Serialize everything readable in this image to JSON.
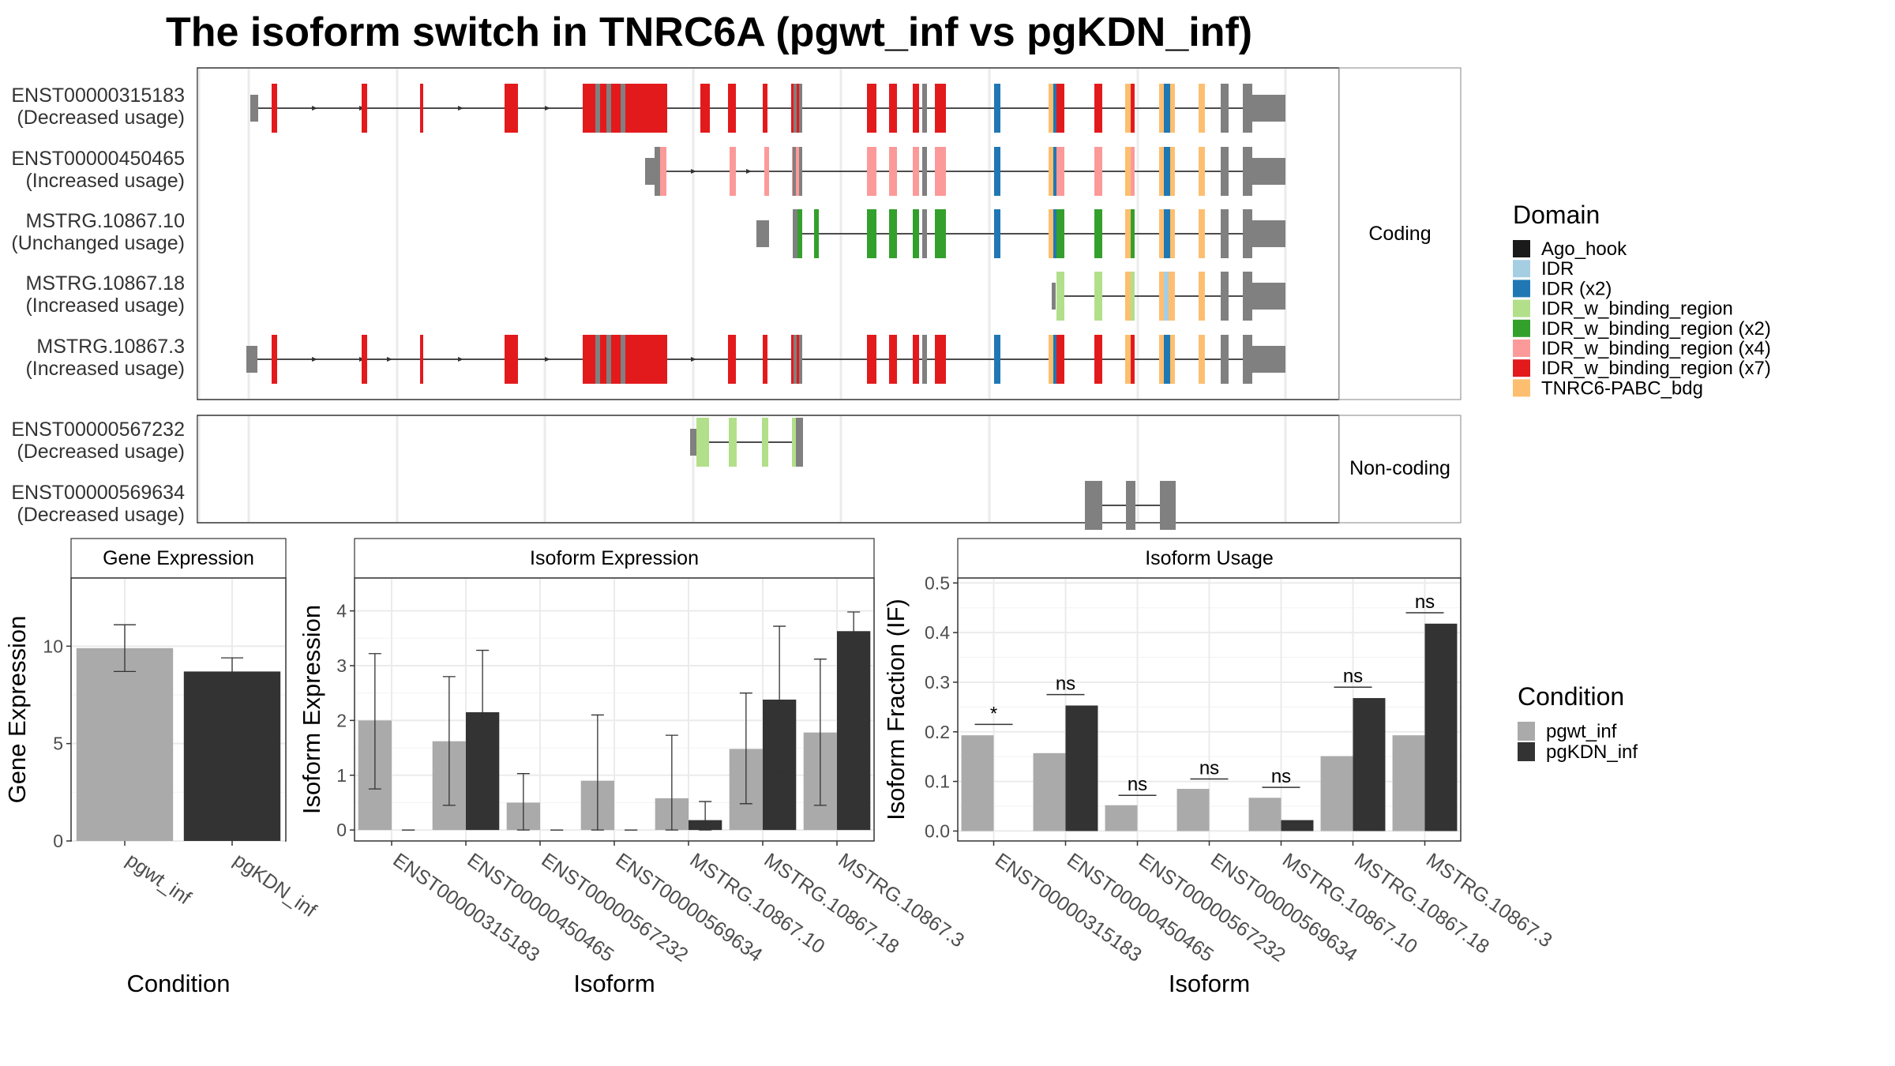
{
  "title": "The isoform switch in TNRC6A (pgwt_inf vs pgKDN_inf)",
  "colors": {
    "exon_plain": "#808080",
    "Ago_hook": "#1a1a1a",
    "IDR": "#a6cee3",
    "IDR (x2)": "#1f78b4",
    "IDR_w_binding_region": "#b2df8a",
    "IDR_w_binding_region (x2)": "#33a02c",
    "IDR_w_binding_region (x4)": "#fb9a99",
    "IDR_w_binding_region (x7)": "#e31a1c",
    "TNRC6-PABC_bdg": "#fdbf6f",
    "pgwt_inf": "#aaaaaa",
    "pgKDN_inf": "#333333"
  },
  "domain_legend": {
    "title": "Domain",
    "items": [
      "Ago_hook",
      "IDR",
      "IDR (x2)",
      "IDR_w_binding_region",
      "IDR_w_binding_region (x2)",
      "IDR_w_binding_region (x4)",
      "IDR_w_binding_region (x7)",
      "TNRC6-PABC_bdg"
    ]
  },
  "condition_legend": {
    "title": "Condition",
    "items": [
      "pgwt_inf",
      "pgKDN_inf"
    ]
  },
  "structure_panels": [
    {
      "strip": "Coding",
      "tracks": [
        {
          "id": "ENST00000315183",
          "usage": "(Decreased usage)"
        },
        {
          "id": "ENST00000450465",
          "usage": "(Increased usage)"
        },
        {
          "id": "MSTRG.10867.10",
          "usage": "(Unchanged usage)"
        },
        {
          "id": "MSTRG.10867.18",
          "usage": "(Increased usage)"
        },
        {
          "id": "MSTRG.10867.3",
          "usage": "(Increased usage)"
        }
      ]
    },
    {
      "strip": "Non-coding",
      "tracks": [
        {
          "id": "ENST00000567232",
          "usage": "(Decreased usage)"
        },
        {
          "id": "ENST00000569634",
          "usage": "(Decreased usage)"
        }
      ]
    }
  ],
  "chart_data": [
    {
      "type": "bar",
      "title": "Gene Expression",
      "xlabel": "Condition",
      "ylabel": "Gene Expression",
      "ylim": [
        0,
        13.5
      ],
      "yticks": [
        0,
        5,
        10
      ],
      "categories": [
        "pgwt_inf",
        "pgKDN_inf"
      ],
      "values": [
        9.9,
        8.7
      ],
      "error_low": [
        8.7,
        8.0
      ],
      "error_high": [
        11.1,
        9.4
      ]
    },
    {
      "type": "bar",
      "title": "Isoform Expression",
      "xlabel": "Isoform",
      "ylabel": "Isoform Expression",
      "ylim": [
        -0.2,
        4.6
      ],
      "yticks": [
        0,
        1,
        2,
        3,
        4
      ],
      "categories": [
        "ENST00000315183",
        "ENST00000450465",
        "ENST00000567232",
        "ENST00000569634",
        "MSTRG.10867.10",
        "MSTRG.10867.18",
        "MSTRG.10867.3"
      ],
      "series": [
        {
          "name": "pgwt_inf",
          "values": [
            2.0,
            1.62,
            0.5,
            0.9,
            0.58,
            1.48,
            1.78
          ],
          "error_low": [
            0.75,
            0.45,
            0.0,
            0.0,
            0.0,
            0.48,
            0.45
          ],
          "error_high": [
            3.22,
            2.8,
            1.03,
            2.1,
            1.73,
            2.5,
            3.12
          ]
        },
        {
          "name": "pgKDN_inf",
          "values": [
            0.0,
            2.15,
            0.0,
            0.0,
            0.18,
            2.38,
            3.63
          ],
          "error_low": [
            0.0,
            1.0,
            0.0,
            0.0,
            0.0,
            1.05,
            3.25
          ],
          "error_high": [
            0.0,
            3.28,
            0.0,
            0.0,
            0.52,
            3.72,
            3.98
          ]
        }
      ]
    },
    {
      "type": "bar",
      "title": "Isoform Usage",
      "xlabel": "Isoform",
      "ylabel": "Isoform Fraction (IF)",
      "ylim": [
        -0.02,
        0.51
      ],
      "yticks": [
        0.0,
        0.1,
        0.2,
        0.3,
        0.4,
        0.5
      ],
      "categories": [
        "ENST00000315183",
        "ENST00000450465",
        "ENST00000567232",
        "ENST00000569634",
        "MSTRG.10867.10",
        "MSTRG.10867.18",
        "MSTRG.10867.3"
      ],
      "series": [
        {
          "name": "pgwt_inf",
          "values": [
            0.193,
            0.157,
            0.052,
            0.085,
            0.067,
            0.151,
            0.193
          ]
        },
        {
          "name": "pgKDN_inf",
          "values": [
            0.0,
            0.253,
            0.0,
            0.0,
            0.022,
            0.268,
            0.418
          ]
        }
      ],
      "significance": [
        "*",
        "ns",
        "ns",
        "ns",
        "ns",
        "ns",
        "ns"
      ],
      "significance_y": [
        0.215,
        0.275,
        0.072,
        0.105,
        0.088,
        0.29,
        0.44
      ]
    }
  ]
}
